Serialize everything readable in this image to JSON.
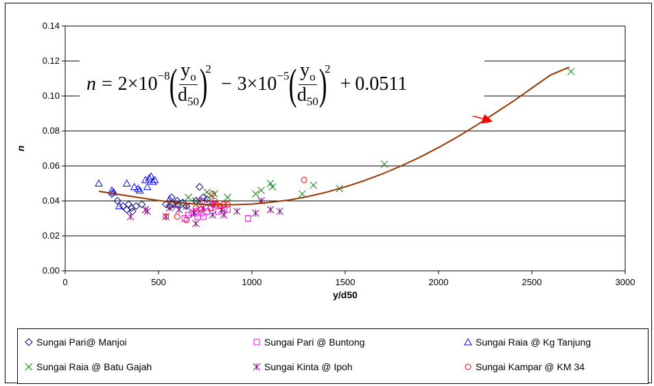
{
  "chart_data": {
    "type": "scatter",
    "xlabel": "y/d50",
    "ylabel": "n",
    "xlim": [
      0,
      3000
    ],
    "ylim": [
      0,
      0.14
    ],
    "x_ticks": [
      "0",
      "500",
      "1000",
      "1500",
      "2000",
      "2500",
      "3000"
    ],
    "y_ticks": [
      "0.00",
      "0.02",
      "0.04",
      "0.06",
      "0.08",
      "0.10",
      "0.12",
      "0.14"
    ],
    "grid": "horizontal",
    "legend_position": "bottom",
    "equation": {
      "lhs": "n",
      "coef1": "2×10",
      "exp1": "−8",
      "coef2": "3×10",
      "exp2": "−5",
      "num": "y",
      "num_sub": "o",
      "den": "d",
      "den_sub": "50",
      "power": "2",
      "const": "0.0511"
    },
    "trend_curve": {
      "color": "#993300",
      "points": [
        [
          180,
          0.0455
        ],
        [
          300,
          0.0435
        ],
        [
          400,
          0.0418
        ],
        [
          500,
          0.0402
        ],
        [
          600,
          0.039
        ],
        [
          700,
          0.0382
        ],
        [
          800,
          0.0378
        ],
        [
          900,
          0.0378
        ],
        [
          1000,
          0.0382
        ],
        [
          1100,
          0.0392
        ],
        [
          1200,
          0.0405
        ],
        [
          1300,
          0.0425
        ],
        [
          1400,
          0.045
        ],
        [
          1500,
          0.048
        ],
        [
          1600,
          0.0515
        ],
        [
          1700,
          0.0555
        ],
        [
          1800,
          0.06
        ],
        [
          1900,
          0.065
        ],
        [
          2000,
          0.0705
        ],
        [
          2100,
          0.0765
        ],
        [
          2200,
          0.083
        ],
        [
          2300,
          0.09
        ],
        [
          2400,
          0.097
        ],
        [
          2500,
          0.1045
        ],
        [
          2600,
          0.112
        ],
        [
          2700,
          0.1165
        ]
      ]
    },
    "series": [
      {
        "name": "Sungai Pari@ Manjoi",
        "marker": "diamond",
        "color": "#000080",
        "points": [
          [
            250,
            0.044
          ],
          [
            280,
            0.04
          ],
          [
            310,
            0.037
          ],
          [
            330,
            0.035
          ],
          [
            340,
            0.038
          ],
          [
            355,
            0.036
          ],
          [
            360,
            0.034
          ],
          [
            380,
            0.037
          ],
          [
            410,
            0.038
          ],
          [
            540,
            0.038
          ],
          [
            560,
            0.037
          ],
          [
            570,
            0.042
          ],
          [
            600,
            0.04
          ],
          [
            630,
            0.039
          ],
          [
            650,
            0.037
          ],
          [
            700,
            0.04
          ],
          [
            720,
            0.048
          ],
          [
            740,
            0.042
          ],
          [
            760,
            0.041
          ],
          [
            790,
            0.038
          ]
        ]
      },
      {
        "name": "Sungai Pari @ Buntong",
        "marker": "square",
        "color": "#FF00FF",
        "points": [
          [
            640,
            0.03
          ],
          [
            660,
            0.032
          ],
          [
            680,
            0.033
          ],
          [
            700,
            0.034
          ],
          [
            710,
            0.031
          ],
          [
            720,
            0.035
          ],
          [
            730,
            0.033
          ],
          [
            740,
            0.031
          ],
          [
            760,
            0.034
          ],
          [
            780,
            0.036
          ],
          [
            800,
            0.038
          ],
          [
            820,
            0.034
          ],
          [
            850,
            0.036
          ],
          [
            870,
            0.035
          ],
          [
            980,
            0.03
          ]
        ]
      },
      {
        "name": "Sungai Raia @ Kg Tanjung",
        "marker": "triangle",
        "color": "#0000FF",
        "points": [
          [
            180,
            0.05
          ],
          [
            250,
            0.046
          ],
          [
            260,
            0.045
          ],
          [
            290,
            0.037
          ],
          [
            330,
            0.05
          ],
          [
            370,
            0.048
          ],
          [
            390,
            0.047
          ],
          [
            400,
            0.046
          ],
          [
            430,
            0.052
          ],
          [
            440,
            0.048
          ],
          [
            450,
            0.053
          ],
          [
            460,
            0.054
          ],
          [
            470,
            0.051
          ],
          [
            480,
            0.052
          ],
          [
            560,
            0.041
          ],
          [
            600,
            0.038
          ]
        ]
      },
      {
        "name": "Sungai Raia  @ Batu Gajah",
        "marker": "x",
        "color": "#008000",
        "points": [
          [
            570,
            0.037
          ],
          [
            620,
            0.038
          ],
          [
            660,
            0.042
          ],
          [
            700,
            0.04
          ],
          [
            760,
            0.045
          ],
          [
            780,
            0.043
          ],
          [
            800,
            0.044
          ],
          [
            870,
            0.042
          ],
          [
            1020,
            0.044
          ],
          [
            1050,
            0.046
          ],
          [
            1100,
            0.05
          ],
          [
            1110,
            0.048
          ],
          [
            1270,
            0.044
          ],
          [
            1330,
            0.049
          ],
          [
            1470,
            0.047
          ],
          [
            1710,
            0.061
          ],
          [
            2710,
            0.114
          ]
        ]
      },
      {
        "name": "Sungai Kinta @ Ipoh",
        "marker": "asterisk",
        "color": "#800080",
        "points": [
          [
            350,
            0.031
          ],
          [
            430,
            0.035
          ],
          [
            440,
            0.034
          ],
          [
            540,
            0.031
          ],
          [
            560,
            0.036
          ],
          [
            590,
            0.038
          ],
          [
            610,
            0.035
          ],
          [
            650,
            0.037
          ],
          [
            690,
            0.033
          ],
          [
            700,
            0.027
          ],
          [
            720,
            0.04
          ],
          [
            740,
            0.036
          ],
          [
            790,
            0.032
          ],
          [
            840,
            0.035
          ],
          [
            850,
            0.032
          ],
          [
            920,
            0.034
          ],
          [
            1020,
            0.033
          ],
          [
            1050,
            0.04
          ],
          [
            1100,
            0.035
          ],
          [
            1150,
            0.034
          ]
        ]
      },
      {
        "name": "Sungai Kampar @ KM 34",
        "marker": "circle",
        "color": "#FF0000",
        "points": [
          [
            540,
            0.031
          ],
          [
            600,
            0.031
          ],
          [
            650,
            0.029
          ],
          [
            700,
            0.036
          ],
          [
            730,
            0.035
          ],
          [
            760,
            0.039
          ],
          [
            780,
            0.036
          ],
          [
            790,
            0.044
          ],
          [
            800,
            0.04
          ],
          [
            810,
            0.038
          ],
          [
            830,
            0.037
          ],
          [
            850,
            0.038
          ],
          [
            870,
            0.038
          ],
          [
            1280,
            0.052
          ]
        ]
      }
    ]
  }
}
